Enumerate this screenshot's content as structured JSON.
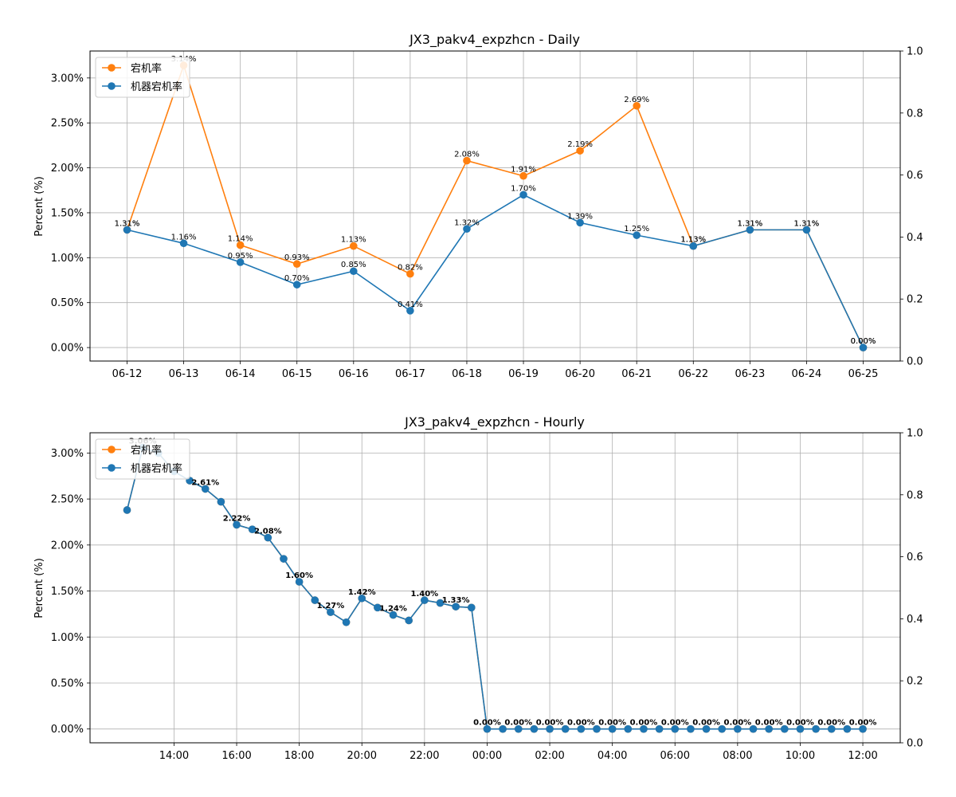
{
  "colors": {
    "orange": "#ff7f0e",
    "blue": "#1f77b4",
    "grid": "#b0b0b0"
  },
  "chart_data": [
    {
      "type": "line",
      "title": "JX3_pakv4_expzhcn - Daily",
      "ylabel": "Percent (%)",
      "ylim": [
        -0.15,
        3.3
      ],
      "yticks": [
        "0.00%",
        "0.50%",
        "1.00%",
        "1.50%",
        "2.00%",
        "2.50%",
        "3.00%"
      ],
      "right_yticks": [
        "0.0",
        "0.2",
        "0.4",
        "0.6",
        "0.8",
        "1.0"
      ],
      "categories": [
        "06-12",
        "06-13",
        "06-14",
        "06-15",
        "06-16",
        "06-17",
        "06-18",
        "06-19",
        "06-20",
        "06-21",
        "06-22",
        "06-23",
        "06-24",
        "06-25"
      ],
      "grid": true,
      "legend": "top-left",
      "series": [
        {
          "name": "宕机率",
          "color": "#ff7f0e",
          "values": [
            1.31,
            3.14,
            1.14,
            0.93,
            1.13,
            0.82,
            2.08,
            1.91,
            2.19,
            2.69,
            1.13,
            1.31,
            1.31,
            0.0
          ],
          "labels": [
            "1.31%",
            "3.14%",
            "1.14%",
            "0.93%",
            "1.13%",
            "0.82%",
            "2.08%",
            "1.91%",
            "2.19%",
            "2.69%",
            "1.13%",
            "1.31%",
            "1.31%",
            "0.00%"
          ]
        },
        {
          "name": "机器宕机率",
          "color": "#1f77b4",
          "values": [
            1.31,
            1.16,
            0.95,
            0.7,
            0.85,
            0.41,
            1.32,
            1.7,
            1.39,
            1.25,
            1.13,
            1.31,
            1.31,
            0.0
          ],
          "labels": [
            "1.31%",
            "1.16%",
            "0.95%",
            "0.70%",
            "0.85%",
            "0.41%",
            "1.32%",
            "1.70%",
            "1.39%",
            "1.25%",
            "1.13%",
            "1.31%",
            "1.31%",
            "0.00%"
          ]
        }
      ]
    },
    {
      "type": "line",
      "title": "JX3_pakv4_expzhcn - Hourly",
      "ylabel": "Percent (%)",
      "ylim": [
        -0.15,
        3.22
      ],
      "yticks": [
        "0.00%",
        "0.50%",
        "1.00%",
        "1.50%",
        "2.00%",
        "2.50%",
        "3.00%"
      ],
      "right_yticks": [
        "0.0",
        "0.2",
        "0.4",
        "0.6",
        "0.8",
        "1.0"
      ],
      "xticks": [
        "14:00",
        "16:00",
        "18:00",
        "20:00",
        "22:00",
        "00:00",
        "02:00",
        "04:00",
        "06:00",
        "08:00",
        "10:00",
        "12:00"
      ],
      "x": [
        "12:30",
        "13:00",
        "13:30",
        "14:00",
        "14:30",
        "15:00",
        "15:30",
        "16:00",
        "16:30",
        "17:00",
        "17:30",
        "18:00",
        "18:30",
        "19:00",
        "19:30",
        "20:00",
        "20:30",
        "21:00",
        "21:30",
        "22:00",
        "22:30",
        "23:00",
        "23:30",
        "00:00",
        "00:30",
        "01:00",
        "01:30",
        "02:00",
        "02:30",
        "03:00",
        "03:30",
        "04:00",
        "04:30",
        "05:00",
        "05:30",
        "06:00",
        "06:30",
        "07:00",
        "07:30",
        "08:00",
        "08:30",
        "09:00",
        "09:30",
        "10:00",
        "10:30",
        "11:00",
        "11:30",
        "12:00"
      ],
      "grid": true,
      "legend": "top-left",
      "series": [
        {
          "name": "宕机率",
          "color": "#ff7f0e",
          "values": [
            2.38,
            3.06,
            3.0,
            2.8,
            2.7,
            2.61,
            2.47,
            2.22,
            2.17,
            2.08,
            1.85,
            1.6,
            1.4,
            1.27,
            1.16,
            1.42,
            1.32,
            1.24,
            1.18,
            1.4,
            1.37,
            1.33,
            1.32,
            0,
            0,
            0,
            0,
            0,
            0,
            0,
            0,
            0,
            0,
            0,
            0,
            0,
            0,
            0,
            0,
            0,
            0,
            0,
            0,
            0,
            0,
            0,
            0,
            0
          ]
        },
        {
          "name": "机器宕机率",
          "color": "#1f77b4",
          "values": [
            2.38,
            3.06,
            3.0,
            2.8,
            2.7,
            2.61,
            2.47,
            2.22,
            2.17,
            2.08,
            1.85,
            1.6,
            1.4,
            1.27,
            1.16,
            1.42,
            1.32,
            1.24,
            1.18,
            1.4,
            1.37,
            1.33,
            1.32,
            0,
            0,
            0,
            0,
            0,
            0,
            0,
            0,
            0,
            0,
            0,
            0,
            0,
            0,
            0,
            0,
            0,
            0,
            0,
            0,
            0,
            0,
            0,
            0,
            0
          ]
        }
      ],
      "data_labels": [
        {
          "x": "13:00",
          "text": "3.06%"
        },
        {
          "x": "15:00",
          "text": "2.61%"
        },
        {
          "x": "16:00",
          "text": "2.22%"
        },
        {
          "x": "17:00",
          "text": "2.08%"
        },
        {
          "x": "18:00",
          "text": "1.60%"
        },
        {
          "x": "19:00",
          "text": "1.27%"
        },
        {
          "x": "20:00",
          "text": "1.42%"
        },
        {
          "x": "21:00",
          "text": "1.24%"
        },
        {
          "x": "22:00",
          "text": "1.40%"
        },
        {
          "x": "23:00",
          "text": "1.33%"
        },
        {
          "x": "00:00",
          "text": "0.00%"
        },
        {
          "x": "01:00",
          "text": "0.00%"
        },
        {
          "x": "02:00",
          "text": "0.00%"
        },
        {
          "x": "03:00",
          "text": "0.00%"
        },
        {
          "x": "04:00",
          "text": "0.00%"
        },
        {
          "x": "05:00",
          "text": "0.00%"
        },
        {
          "x": "06:00",
          "text": "0.00%"
        },
        {
          "x": "07:00",
          "text": "0.00%"
        },
        {
          "x": "08:00",
          "text": "0.00%"
        },
        {
          "x": "09:00",
          "text": "0.00%"
        },
        {
          "x": "10:00",
          "text": "0.00%"
        },
        {
          "x": "11:00",
          "text": "0.00%"
        },
        {
          "x": "12:00",
          "text": "0.00%"
        }
      ]
    }
  ]
}
